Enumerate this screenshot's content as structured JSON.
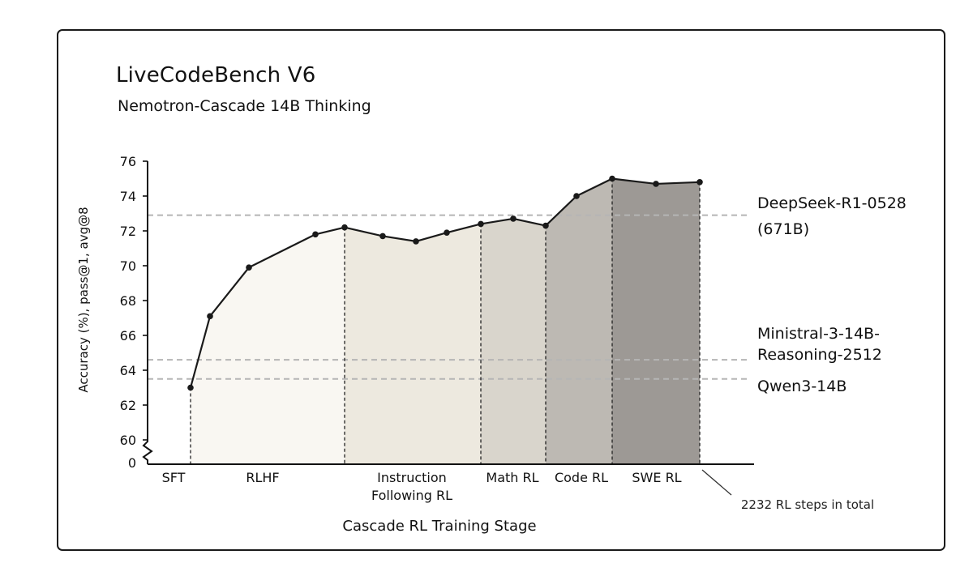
{
  "chart_data": {
    "type": "area",
    "title": "LiveCodeBench V6",
    "subtitle": "Nemotron-Cascade 14B Thinking",
    "xlabel": "Cascade RL Training Stage",
    "ylabel": "Accuracy (%), pass@1, avg@8",
    "ylim": [
      60,
      76
    ],
    "yticks": [
      "76",
      "74",
      "72",
      "70",
      "68",
      "66",
      "64",
      "62",
      "60",
      "0"
    ],
    "axis_break": true,
    "series": [
      {
        "values": [
          63.0,
          67.1,
          69.9,
          71.8,
          72.2,
          71.7,
          71.4,
          71.9,
          72.4,
          72.7,
          72.3,
          74.0,
          75.0,
          74.7,
          74.8
        ]
      }
    ],
    "stages": [
      {
        "label": "SFT",
        "fill": "#ffffff"
      },
      {
        "label": "RLHF",
        "fill": "#f9f7f2"
      },
      {
        "label": "Instruction Following RL",
        "fill": "#ede9df"
      },
      {
        "label": "Math RL",
        "fill": "#d9d5cc"
      },
      {
        "label": "Code RL",
        "fill": "#bdb9b3"
      },
      {
        "label": "SWE RL",
        "fill": "#9d9995"
      }
    ],
    "reference_lines": [
      {
        "name": "DeepSeek-R1-0528 (671B)",
        "lines": [
          "DeepSeek-R1-0528",
          "(671B)"
        ],
        "value": 72.9
      },
      {
        "name": "Ministral-3-14B-Reasoning-2512",
        "lines": [
          "Ministral-3-14B-",
          "Reasoning-2512"
        ],
        "value": 64.6
      },
      {
        "name": "Qwen3-14B",
        "lines": [
          "Qwen3-14B"
        ],
        "value": 63.5
      }
    ],
    "annotation": "2232 RL steps in total",
    "grid": false,
    "colors": {
      "line": "#1a1a1a",
      "reference": "#b5b5b5"
    }
  }
}
